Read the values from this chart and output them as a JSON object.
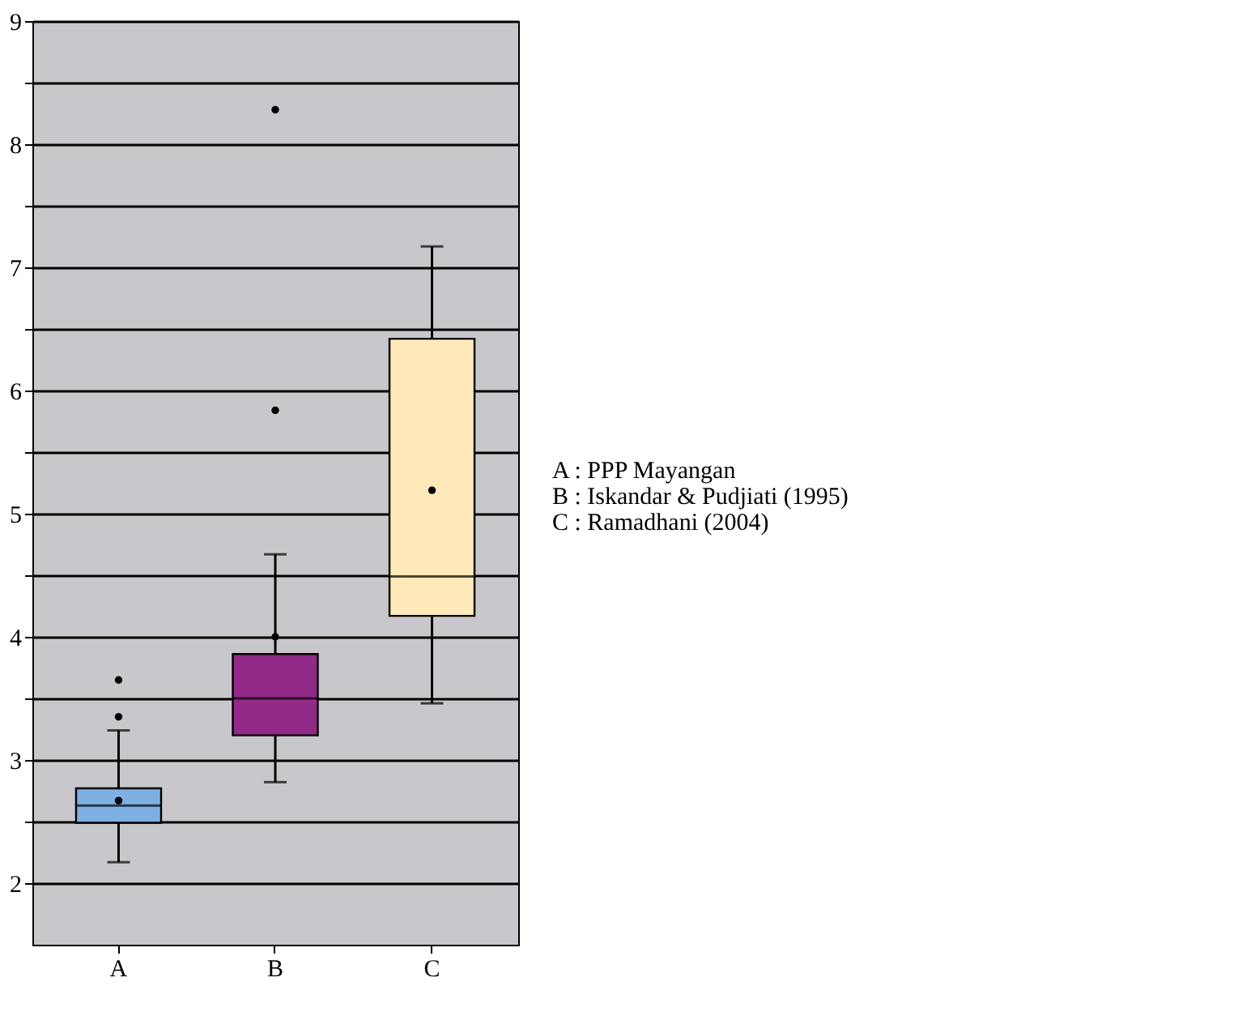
{
  "chart_data": {
    "type": "box",
    "categories": [
      "A",
      "B",
      "C"
    ],
    "boxes": [
      {
        "low": 2.17,
        "q1": 2.49,
        "median": 2.63,
        "q3": 2.77,
        "high": 3.24,
        "mean": 2.67,
        "outliers": [
          3.35,
          3.65
        ]
      },
      {
        "low": 2.82,
        "q1": 3.2,
        "median": 3.5,
        "q3": 3.86,
        "high": 4.67,
        "mean": 4.0,
        "outliers": [
          5.84,
          8.28
        ]
      },
      {
        "low": 3.46,
        "q1": 4.17,
        "median": 4.49,
        "q3": 6.42,
        "high": 7.17,
        "mean": 5.19
      }
    ],
    "colors": [
      "#7eb0e3",
      "#922a88",
      "#ffe9b8"
    ],
    "ylim": [
      1.5,
      9
    ],
    "yticks": [
      2,
      {
        "value": 2.5,
        "label": null
      },
      3,
      {
        "value": 3.5,
        "label": null
      },
      4,
      {
        "value": 4.5,
        "label": null
      },
      5,
      {
        "value": 5.5,
        "label": null
      },
      6,
      {
        "value": 6.5,
        "label": null
      },
      7,
      {
        "value": 7.5,
        "label": null
      },
      8,
      {
        "value": 8.5,
        "label": null
      },
      9
    ],
    "grid": true,
    "annotations": [
      "A : PPP Mayangan",
      "B : Iskandar & Pudjiati (1995)",
      "C : Ramadhani (2004)"
    ]
  }
}
